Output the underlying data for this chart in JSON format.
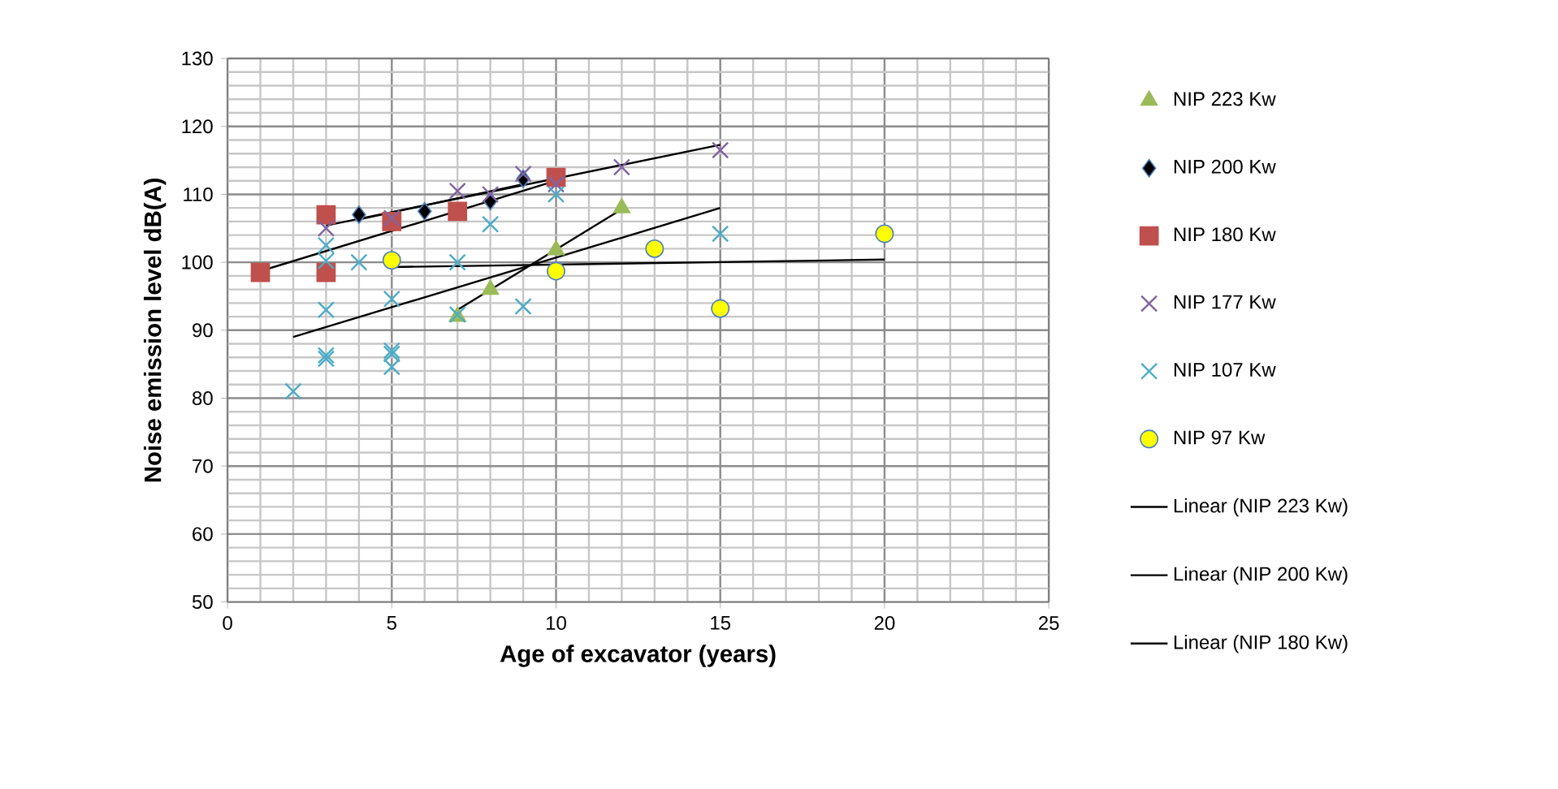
{
  "chart_data": {
    "type": "scatter",
    "xlabel": "Age of excavator (years)",
    "ylabel": "Noise emission level dB(A)",
    "xlim": [
      0,
      25
    ],
    "xticks": [
      0,
      5,
      10,
      15,
      20,
      25
    ],
    "ylim": [
      50,
      130
    ],
    "yticks": [
      50,
      60,
      70,
      80,
      90,
      100,
      110,
      120,
      130
    ],
    "grid": true,
    "legend": "right",
    "series": [
      {
        "name": "NIP 223 Kw",
        "color": "#9bbb59",
        "marker": "triangle",
        "x": [
          7,
          8,
          10,
          12
        ],
        "values": [
          92,
          96,
          101.8,
          108
        ]
      },
      {
        "name": "NIP 200 Kw",
        "color": "#000000",
        "marker": "diamond",
        "x": [
          4,
          6,
          8,
          9
        ],
        "values": [
          107,
          107.5,
          109,
          112.3
        ]
      },
      {
        "name": "NIP 180 Kw",
        "color": "#c0504d",
        "marker": "square",
        "x": [
          1,
          3,
          3,
          5,
          7,
          10
        ],
        "values": [
          98.5,
          107,
          98.5,
          106,
          107.5,
          112.5
        ]
      },
      {
        "name": "NIP 177 Kw",
        "color": "#8064a2",
        "marker": "cross",
        "x": [
          3,
          5,
          7,
          8,
          9,
          10,
          12,
          15
        ],
        "values": [
          105,
          106.5,
          110.5,
          110,
          113,
          111.5,
          114,
          116.5
        ]
      },
      {
        "name": "NIP 107 Kw",
        "color": "#4bacc6",
        "marker": "cross",
        "x": [
          2,
          3,
          3,
          3,
          3,
          3,
          4,
          5,
          5,
          5,
          5,
          7,
          7,
          8,
          9,
          10,
          15
        ],
        "values": [
          81,
          85.8,
          86.3,
          93,
          100.2,
          102.5,
          100,
          94.6,
          87,
          86.5,
          84.6,
          100,
          92.3,
          105.6,
          93.5,
          110,
          104.2
        ]
      },
      {
        "name": "NIP 97 Kw",
        "color": "#ffff00",
        "marker": "circle",
        "x": [
          5,
          10,
          13,
          15,
          20
        ],
        "values": [
          100.3,
          98.7,
          102,
          93.2,
          104.2
        ]
      },
      {
        "name": "Linear (NIP 223 Kw)",
        "type": "line",
        "color": "#000000",
        "marker": "none",
        "x": [
          7,
          12
        ],
        "values": [
          93,
          107.8
        ]
      },
      {
        "name": "Linear (NIP 200 Kw)",
        "type": "line",
        "color": "#000000",
        "marker": "none",
        "x": [
          4,
          9
        ],
        "values": [
          106.3,
          111.5
        ]
      },
      {
        "name": "Linear (NIP 180 Kw)",
        "type": "line",
        "color": "#000000",
        "marker": "none",
        "x": [
          1,
          10
        ],
        "values": [
          98.7,
          112
        ]
      },
      {
        "type": "line",
        "color": "#000000",
        "marker": "none",
        "x": [
          3,
          15
        ],
        "values": [
          105.4,
          117.3
        ]
      },
      {
        "type": "line",
        "color": "#000000",
        "marker": "none",
        "x": [
          2,
          15
        ],
        "values": [
          89,
          108
        ]
      },
      {
        "type": "line",
        "color": "#000000",
        "marker": "none",
        "x": [
          5,
          20
        ],
        "values": [
          99.3,
          100.4
        ]
      }
    ]
  }
}
